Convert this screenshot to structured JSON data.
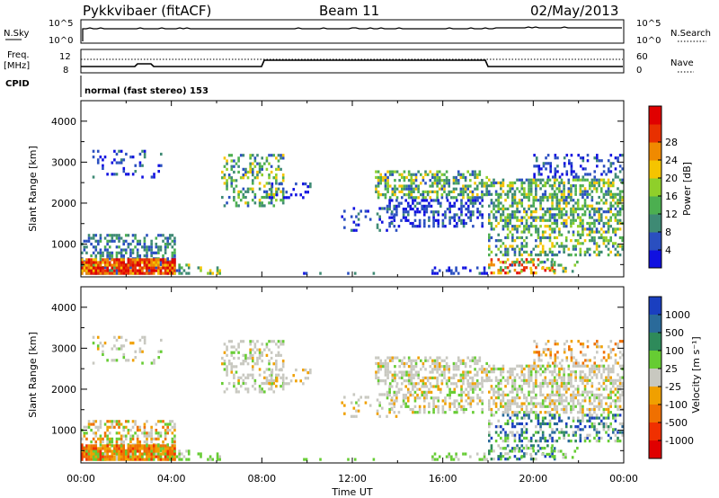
{
  "header": {
    "station": "Pykkvibaer (fitACF)",
    "beam": "Beam 11",
    "date": "02/May/2013"
  },
  "panels": {
    "nsky_label": "N.Sky",
    "nsky_ticks": [
      "10^5",
      "10^0"
    ],
    "nsearch_label": "N.Search",
    "nsearch_ticks": [
      "10^5",
      "10^0"
    ],
    "freq_label_1": "Freq.",
    "freq_label_2": "[MHz]",
    "freq_ticks": [
      "12",
      "8"
    ],
    "nave_label": "Nave",
    "nave_ticks": [
      "60",
      "0"
    ],
    "cpid_label": "CPID",
    "cpid_text": "normal (fast stereo) 153"
  },
  "chart_data": [
    {
      "type": "heatmap",
      "name": "power",
      "ylabel": "Slant Range [km]",
      "ylim": [
        200,
        4500
      ],
      "yticks": [
        "1000",
        "2000",
        "3000",
        "4000"
      ],
      "colorbar_label": "Power [dB]",
      "colorbar_ticks": [
        "4",
        "8",
        "12",
        "16",
        "20",
        "24",
        "28"
      ],
      "colors": [
        "#1010e0",
        "#2a4fc0",
        "#3e8a74",
        "#4caf50",
        "#8fcf2a",
        "#f5c400",
        "#f08a00",
        "#e83000",
        "#e00000"
      ],
      "grid": true
    },
    {
      "type": "heatmap",
      "name": "velocity",
      "ylabel": "Slant Range [km]",
      "xlabel": "Time UT",
      "ylim": [
        200,
        4500
      ],
      "yticks": [
        "1000",
        "2000",
        "3000",
        "4000"
      ],
      "xticks": [
        "00:00",
        "04:00",
        "08:00",
        "12:00",
        "16:00",
        "20:00",
        "00:00"
      ],
      "colorbar_label": "Velocity [m s⁻¹]",
      "colorbar_ticks": [
        "1000",
        "500",
        "100",
        "25",
        "-25",
        "-100",
        "-500",
        "-1000"
      ],
      "colors": [
        "#1a3fc0",
        "#2a6a9a",
        "#2e8a5a",
        "#66cc33",
        "#c8c8c0",
        "#f0a000",
        "#f07000",
        "#f03000",
        "#e00000"
      ],
      "grid": true
    }
  ]
}
